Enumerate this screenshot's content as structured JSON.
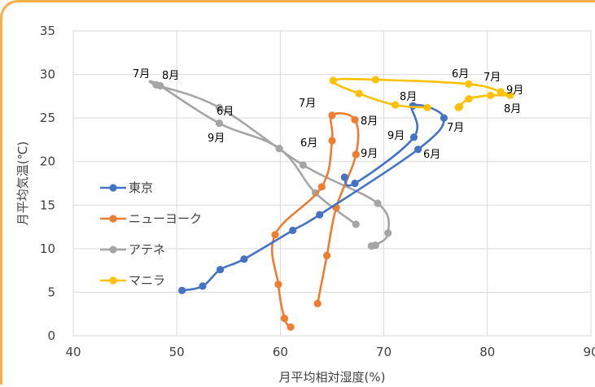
{
  "chart_data": {
    "type": "line",
    "title": "",
    "xlabel": "月平均相対湿度(%)",
    "ylabel": "月平均気温(℃)",
    "xlim": [
      40,
      90
    ],
    "ylim": [
      0,
      35
    ],
    "xticks": [
      "40",
      "50",
      "60",
      "70",
      "80",
      "90"
    ],
    "yticks": [
      "0",
      "5",
      "10",
      "15",
      "20",
      "25",
      "30",
      "35"
    ],
    "grid": true,
    "legend_position": "left",
    "series": [
      {
        "name": "東京",
        "color": "#4472c4",
        "points": [
          {
            "x": 50.5,
            "y": 5.2
          },
          {
            "x": 52.5,
            "y": 5.7
          },
          {
            "x": 54.2,
            "y": 7.6
          },
          {
            "x": 56.5,
            "y": 8.8
          },
          {
            "x": 61.2,
            "y": 12.1
          },
          {
            "x": 63.8,
            "y": 13.9
          },
          {
            "x": 73.3,
            "y": 21.4
          },
          {
            "x": 75.8,
            "y": 25.0
          },
          {
            "x": 72.8,
            "y": 26.4
          },
          {
            "x": 72.9,
            "y": 22.8
          },
          {
            "x": 67.2,
            "y": 17.5
          },
          {
            "x": 66.2,
            "y": 18.2
          }
        ]
      },
      {
        "name": "ニューヨーク",
        "color": "#ed7d31",
        "points": [
          {
            "x": 61.0,
            "y": 1.0
          },
          {
            "x": 60.4,
            "y": 2.0
          },
          {
            "x": 59.8,
            "y": 5.9
          },
          {
            "x": 59.5,
            "y": 11.6
          },
          {
            "x": 64.0,
            "y": 17.1
          },
          {
            "x": 65.0,
            "y": 22.4
          },
          {
            "x": 65.0,
            "y": 25.3
          },
          {
            "x": 67.2,
            "y": 24.8
          },
          {
            "x": 67.3,
            "y": 20.8
          },
          {
            "x": 65.4,
            "y": 14.7
          },
          {
            "x": 64.5,
            "y": 9.2
          },
          {
            "x": 63.6,
            "y": 3.7
          }
        ]
      },
      {
        "name": "アテネ",
        "color": "#a5a5a5",
        "points": [
          {
            "x": 68.8,
            "y": 10.3
          },
          {
            "x": 69.2,
            "y": 10.4
          },
          {
            "x": 70.4,
            "y": 11.8
          },
          {
            "x": 69.4,
            "y": 15.2
          },
          {
            "x": 62.2,
            "y": 19.6
          },
          {
            "x": 54.1,
            "y": 26.2
          },
          {
            "x": 48.0,
            "y": 28.8
          },
          {
            "x": 48.4,
            "y": 28.7
          },
          {
            "x": 54.1,
            "y": 24.4
          },
          {
            "x": 59.9,
            "y": 21.5
          },
          {
            "x": 63.4,
            "y": 16.4
          },
          {
            "x": 67.3,
            "y": 12.8
          }
        ]
      },
      {
        "name": "マニラ",
        "color": "#ffc000",
        "points": [
          {
            "x": 74.2,
            "y": 26.2
          },
          {
            "x": 71.1,
            "y": 26.5
          },
          {
            "x": 67.6,
            "y": 27.8
          },
          {
            "x": 65.1,
            "y": 29.3
          },
          {
            "x": 69.2,
            "y": 29.4
          },
          {
            "x": 78.2,
            "y": 28.9
          },
          {
            "x": 81.3,
            "y": 28.0
          },
          {
            "x": 82.2,
            "y": 27.6
          },
          {
            "x": 80.3,
            "y": 27.6
          },
          {
            "x": 78.2,
            "y": 27.2
          },
          {
            "x": 77.2,
            "y": 26.2
          },
          {
            "x": 77.3,
            "y": 26.3
          }
        ]
      }
    ],
    "annotations": [
      {
        "text": "7月",
        "series": "アテネ"
      },
      {
        "text": "8月",
        "series": "アテネ"
      },
      {
        "text": "6月",
        "series": "アテネ"
      },
      {
        "text": "9月",
        "series": "アテネ"
      },
      {
        "text": "7月",
        "series": "ニューヨーク"
      },
      {
        "text": "8月",
        "series": "ニューヨーク"
      },
      {
        "text": "6月",
        "series": "ニューヨーク"
      },
      {
        "text": "9月",
        "series": "ニューヨーク"
      },
      {
        "text": "8月",
        "series": "東京"
      },
      {
        "text": "9月",
        "series": "東京"
      },
      {
        "text": "7月",
        "series": "東京"
      },
      {
        "text": "6月",
        "series": "東京"
      },
      {
        "text": "6月",
        "series": "マニラ"
      },
      {
        "text": "7月",
        "series": "マニラ"
      },
      {
        "text": "9月",
        "series": "マニラ"
      },
      {
        "text": "8月",
        "series": "マニラ"
      }
    ]
  }
}
